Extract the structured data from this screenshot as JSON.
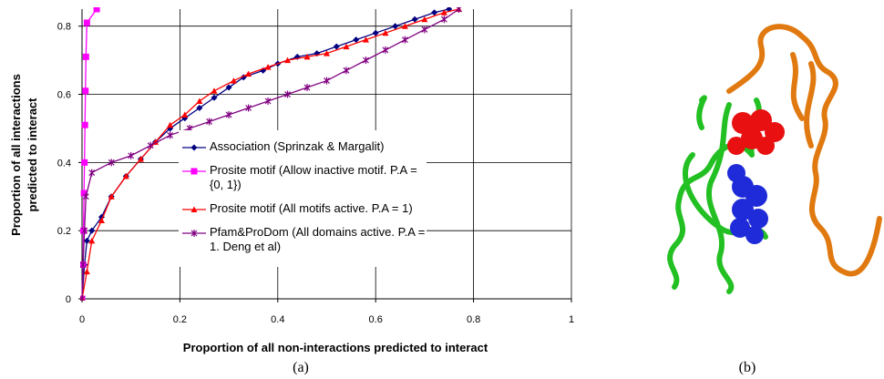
{
  "chart_data": {
    "type": "line",
    "xlabel": "Proportion of all non-interactions predicted to interact",
    "ylabel": [
      "Proportion of all interactions",
      "predicted to interact"
    ],
    "xlim": [
      0,
      1
    ],
    "ylim": [
      0,
      0.85
    ],
    "xticks": [
      0,
      0.2,
      0.4,
      0.6,
      0.8,
      1
    ],
    "yticks": [
      0,
      0.2,
      0.4,
      0.6,
      0.8
    ],
    "grid": true,
    "series": [
      {
        "name": "Association (Sprinzak & Margalit)",
        "color": "#000080",
        "marker": "diamond",
        "x": [
          0,
          0.005,
          0.01,
          0.02,
          0.04,
          0.06,
          0.09,
          0.12,
          0.15,
          0.18,
          0.21,
          0.24,
          0.27,
          0.3,
          0.33,
          0.37,
          0.4,
          0.44,
          0.48,
          0.52,
          0.56,
          0.6,
          0.64,
          0.68,
          0.72,
          0.75
        ],
        "values": [
          0,
          0.1,
          0.17,
          0.2,
          0.24,
          0.3,
          0.36,
          0.41,
          0.46,
          0.5,
          0.53,
          0.56,
          0.59,
          0.62,
          0.65,
          0.67,
          0.69,
          0.71,
          0.72,
          0.74,
          0.76,
          0.78,
          0.8,
          0.82,
          0.84,
          0.85
        ]
      },
      {
        "name": "Prosite motif (Allow inactive motif. P.A = {0, 1})",
        "color": "#ff00ff",
        "marker": "square",
        "x": [
          0,
          0.002,
          0.003,
          0.004,
          0.005,
          0.006,
          0.007,
          0.008,
          0.01,
          0.03
        ],
        "values": [
          0,
          0.1,
          0.2,
          0.31,
          0.4,
          0.51,
          0.61,
          0.71,
          0.81,
          0.85
        ]
      },
      {
        "name": "Prosite motif (All motifs active. P.A = 1)",
        "color": "#ff0000",
        "marker": "triangle",
        "x": [
          0,
          0.01,
          0.02,
          0.04,
          0.06,
          0.09,
          0.12,
          0.15,
          0.18,
          0.21,
          0.24,
          0.27,
          0.31,
          0.34,
          0.38,
          0.42,
          0.46,
          0.5,
          0.54,
          0.58,
          0.62,
          0.66,
          0.7,
          0.74,
          0.77
        ],
        "values": [
          0,
          0.08,
          0.17,
          0.23,
          0.3,
          0.36,
          0.41,
          0.46,
          0.51,
          0.54,
          0.58,
          0.61,
          0.64,
          0.66,
          0.68,
          0.7,
          0.71,
          0.72,
          0.74,
          0.76,
          0.78,
          0.8,
          0.82,
          0.84,
          0.85
        ]
      },
      {
        "name": "Pfam&ProDom (All domains active. P.A = 1. Deng et al)",
        "color": "#800080",
        "marker": "star",
        "x": [
          0,
          0.002,
          0.005,
          0.008,
          0.02,
          0.06,
          0.1,
          0.14,
          0.18,
          0.22,
          0.26,
          0.3,
          0.34,
          0.38,
          0.42,
          0.46,
          0.5,
          0.54,
          0.58,
          0.62,
          0.66,
          0.7,
          0.74,
          0.77
        ],
        "values": [
          0,
          0.1,
          0.2,
          0.3,
          0.37,
          0.4,
          0.42,
          0.45,
          0.48,
          0.5,
          0.52,
          0.54,
          0.56,
          0.58,
          0.6,
          0.62,
          0.64,
          0.67,
          0.7,
          0.73,
          0.76,
          0.79,
          0.82,
          0.85
        ]
      }
    ]
  },
  "captions": [
    "(a)",
    "(b)"
  ]
}
